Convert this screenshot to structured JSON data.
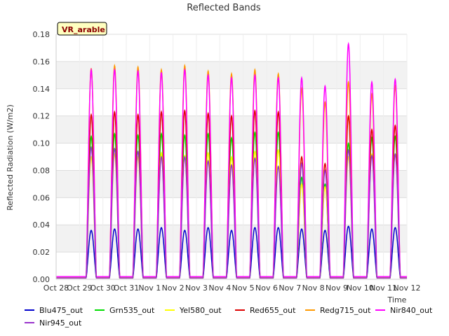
{
  "chart_data": {
    "type": "line",
    "title": "Reflected Bands",
    "xlabel": "Time",
    "ylabel": "Reflected Radiation (W/m2)",
    "badge": "VR_arable",
    "ylim": [
      0,
      0.18
    ],
    "yticks": [
      "0.00",
      "0.02",
      "0.04",
      "0.06",
      "0.08",
      "0.10",
      "0.12",
      "0.14",
      "0.16",
      "0.18"
    ],
    "xlim": [
      "2023-10-28",
      "2023-11-12"
    ],
    "xticks": [
      "Oct 28",
      "Oct 29",
      "Oct 30",
      "Oct 31",
      "Nov 1",
      "Nov 2",
      "Nov 3",
      "Nov 4",
      "Nov 5",
      "Nov 6",
      "Nov 7",
      "Nov 8",
      "Nov 9",
      "Nov 10",
      "Nov 11",
      "Nov 12"
    ],
    "grid": true,
    "legend_position": "bottom",
    "day_dates": [
      "2023-10-28",
      "2023-10-29",
      "2023-10-30",
      "2023-10-31",
      "2023-11-01",
      "2023-11-02",
      "2023-11-03",
      "2023-11-04",
      "2023-11-05",
      "2023-11-06",
      "2023-11-07",
      "2023-11-08",
      "2023-11-09",
      "2023-11-10",
      "2023-11-11"
    ],
    "series": [
      {
        "name": "Blu475_out",
        "color": "#0000cc",
        "night": 0.001,
        "peaks": [
          0.036,
          0.037,
          0.037,
          0.038,
          0.036,
          0.038,
          0.036,
          0.038,
          0.038,
          0.037,
          0.036,
          0.039,
          0.037,
          0.038
        ]
      },
      {
        "name": "Grn535_out",
        "color": "#00dd00",
        "night": 0.001,
        "peaks": [
          0.105,
          0.107,
          0.106,
          0.107,
          0.106,
          0.107,
          0.104,
          0.108,
          0.108,
          0.075,
          0.07,
          0.1,
          0.104,
          0.105
        ]
      },
      {
        "name": "Yel580_out",
        "color": "#ffff00",
        "night": 0.001,
        "peaks": [
          0.09,
          0.092,
          0.09,
          0.093,
          0.091,
          0.093,
          0.09,
          0.094,
          0.095,
          0.07,
          0.068,
          0.09,
          0.092,
          0.092
        ]
      },
      {
        "name": "Red655_out",
        "color": "#dd0000",
        "night": 0.001,
        "peaks": [
          0.121,
          0.123,
          0.121,
          0.123,
          0.124,
          0.122,
          0.12,
          0.124,
          0.123,
          0.09,
          0.085,
          0.12,
          0.11,
          0.113
        ]
      },
      {
        "name": "Redg715_out",
        "color": "#ff9900",
        "night": 0.001,
        "peaks": [
          0.155,
          0.157,
          0.156,
          0.154,
          0.157,
          0.153,
          0.151,
          0.154,
          0.151,
          0.14,
          0.13,
          0.145,
          0.136,
          0.142
        ]
      },
      {
        "name": "Nir840_out",
        "color": "#ff00ff",
        "night": 0.002,
        "peaks": [
          0.154,
          0.154,
          0.153,
          0.152,
          0.154,
          0.15,
          0.148,
          0.15,
          0.148,
          0.148,
          0.142,
          0.173,
          0.145,
          0.147
        ]
      },
      {
        "name": "Nir945_out",
        "color": "#9933cc",
        "night": 0.001,
        "peaks": [
          0.097,
          0.096,
          0.094,
          0.09,
          0.09,
          0.087,
          0.084,
          0.089,
          0.083,
          0.085,
          0.08,
          0.095,
          0.091,
          0.092
        ]
      }
    ]
  }
}
